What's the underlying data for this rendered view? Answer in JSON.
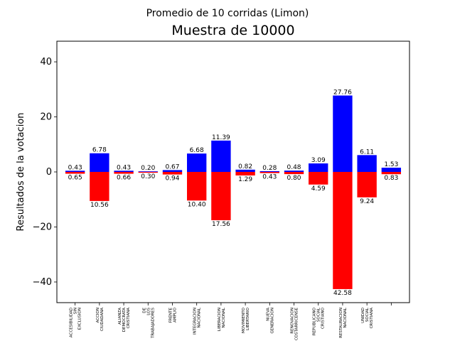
{
  "chart_data": {
    "type": "bar",
    "suptitle": "Promedio de 10 corridas (Limon)",
    "title": "Muestra de 10000",
    "xlabel": "",
    "ylabel": "Resultados de la votacion",
    "ylim": [
      -47.5,
      47.5
    ],
    "yticks": [
      -40,
      -20,
      0,
      20,
      40
    ],
    "grid": false,
    "categories": [
      [
        "ACCESIBILIDAD",
        "SIN",
        "EXCLUSION"
      ],
      [
        "ACCION",
        "CIUDADANA"
      ],
      [
        "ALIANZA",
        "DEMOCRATA",
        "CRISTIANA"
      ],
      [
        "DE",
        "LOS",
        "TRABAJADORES"
      ],
      [
        "FRENTE",
        "AMPLIO"
      ],
      [
        "INTEGRACION",
        "NACIONAL"
      ],
      [
        "LIBERACION",
        "NACIONAL"
      ],
      [
        "MOVIMIENTO",
        "LIBERTARIO"
      ],
      [
        "NUEVA",
        "GENERACION"
      ],
      [
        "RENOVACION",
        "COSTARRICENSE"
      ],
      [
        "REPUBLICANO",
        "SOCIAL",
        "CRISTIANO"
      ],
      [
        "RESTAURACION",
        "NACIONAL"
      ],
      [
        "UNIDAD",
        "SOCIAL",
        "CRISTIANA"
      ],
      []
    ],
    "series": [
      {
        "color": "#0000ff",
        "values": [
          0.43,
          6.78,
          0.43,
          0.2,
          0.67,
          6.68,
          11.39,
          0.82,
          0.28,
          0.48,
          3.09,
          27.76,
          6.11,
          1.53
        ],
        "labels": [
          "0.43",
          "6.78",
          "0.43",
          "0.20",
          "0.67",
          "6.68",
          "11.39",
          "0.82",
          "0.28",
          "0.48",
          "3.09",
          "27.76",
          "6.11",
          "1.53"
        ]
      },
      {
        "color": "#ff0000",
        "values": [
          -0.65,
          -10.56,
          -0.66,
          -0.3,
          -0.94,
          -10.4,
          -17.56,
          -1.29,
          -0.43,
          -0.8,
          -4.59,
          -42.58,
          -9.24,
          -0.83
        ],
        "labels": [
          "0.65",
          "10.56",
          "0.66",
          "0.30",
          "0.94",
          "10.40",
          "17.56",
          "1.29",
          "0.43",
          "0.80",
          "4.59",
          "42.58",
          "9.24",
          "0.83"
        ]
      }
    ]
  }
}
